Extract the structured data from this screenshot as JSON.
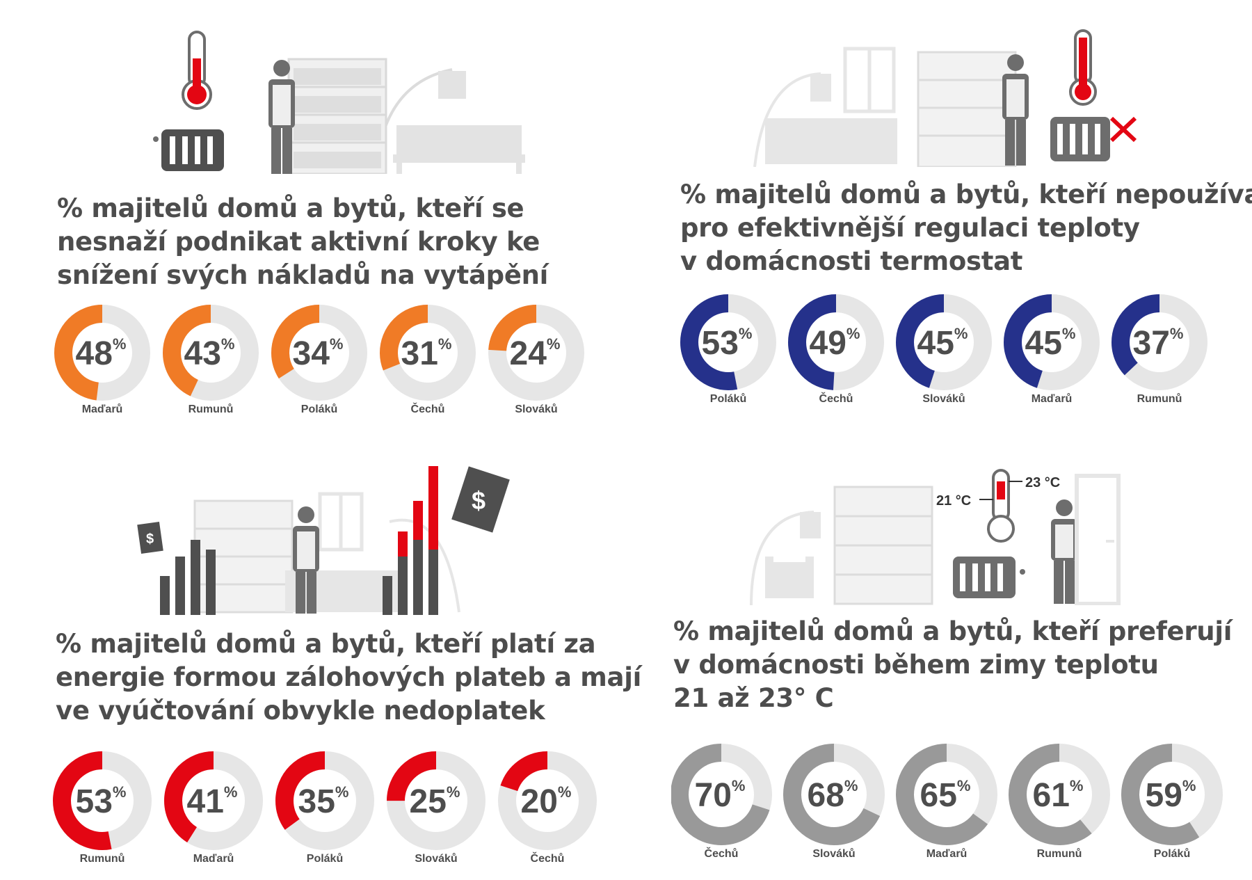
{
  "colors": {
    "orange": "#f07b26",
    "navy": "#25318b",
    "red": "#e30613",
    "gray": "#999999",
    "track": "#e6e6e6",
    "text": "#4d4d4d"
  },
  "panels": [
    {
      "heading": [
        "% majitelů domů a bytů, kteří se",
        "nesnaží podnikat aktivní kroky ke",
        "snížení svých nákladů na vytápění"
      ],
      "illustration_icons": [
        "thermometer-icon",
        "radiator-icon",
        "person-icon",
        "bookshelf-icon",
        "sofa-icon",
        "floor-lamp-icon"
      ]
    },
    {
      "heading": [
        "% majitelů domů a bytů, kteří nepoužívají",
        "pro efektivnější regulaci teploty",
        "v domácnosti termostat"
      ],
      "illustration_icons": [
        "window-icon",
        "sofa-icon",
        "bookshelf-icon",
        "person-icon",
        "thermometer-icon",
        "radiator-icon",
        "cross-icon"
      ]
    },
    {
      "heading": [
        "% majitelů domů a bytů, kteří platí za",
        "energie formou zálohových plateb a mají",
        "ve vyúčtování obvykle nedoplatek"
      ],
      "illustration_icons": [
        "dollar-tag-icon",
        "bar-chart-icon",
        "bookshelf-icon",
        "person-icon",
        "window-icon",
        "dollar-tag-icon"
      ]
    },
    {
      "heading": [
        "% majitelů domů a bytů, kteří preferují",
        "v domácnosti během zimy teplotu",
        "21 až 23° C"
      ],
      "illustration_icons": [
        "floor-lamp-icon",
        "armchair-icon",
        "bookshelf-icon",
        "thermometer-icon",
        "radiator-icon",
        "person-icon",
        "door-icon"
      ],
      "thermometer_labels": {
        "low": "21 °C",
        "high": "23 °C"
      }
    }
  ],
  "chart_data": [
    {
      "type": "pie",
      "style": "donut",
      "color": "#f07b26",
      "categories": [
        "Maďarů",
        "Rumunů",
        "Poláků",
        "Čechů",
        "Slováků"
      ],
      "values": [
        48,
        43,
        34,
        31,
        24
      ],
      "unit": "%"
    },
    {
      "type": "pie",
      "style": "donut",
      "color": "#25318b",
      "categories": [
        "Poláků",
        "Čechů",
        "Slováků",
        "Maďarů",
        "Rumunů"
      ],
      "values": [
        53,
        49,
        45,
        45,
        37
      ],
      "unit": "%"
    },
    {
      "type": "pie",
      "style": "donut",
      "color": "#e30613",
      "categories": [
        "Rumunů",
        "Maďarů",
        "Poláků",
        "Slováků",
        "Čechů"
      ],
      "values": [
        53,
        41,
        35,
        25,
        20
      ],
      "unit": "%"
    },
    {
      "type": "pie",
      "style": "donut",
      "color": "#999999",
      "categories": [
        "Čechů",
        "Slováků",
        "Maďarů",
        "Rumunů",
        "Poláků"
      ],
      "values": [
        70,
        68,
        65,
        61,
        59
      ],
      "unit": "%"
    }
  ]
}
